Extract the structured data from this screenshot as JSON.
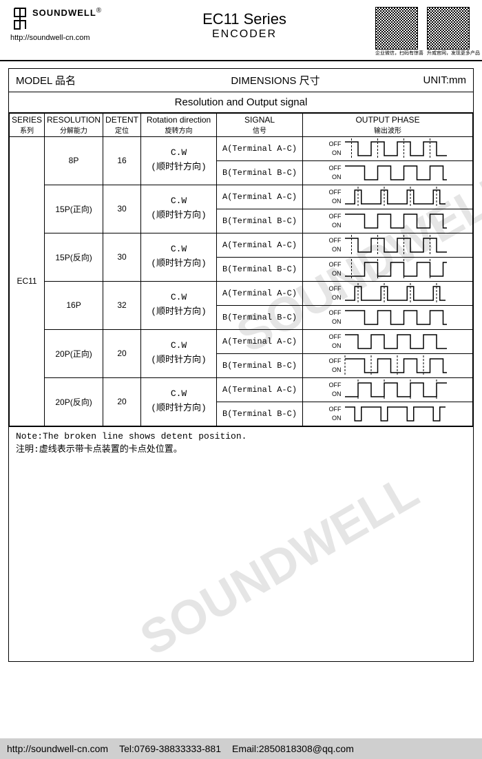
{
  "header": {
    "brand": "SOUNDWELL",
    "reg": "®",
    "url": "http://soundwell-cn.com",
    "series_title": "EC11 Series",
    "subtitle": "ENCODER",
    "qr1_caption": "企业微信，扫码有惊喜",
    "qr2_caption": "升威官网，发现更多产品"
  },
  "banner": {
    "model_label": "MODEL 品名",
    "dimensions_label": "DIMENSIONS 尺寸",
    "unit_label": "UNIT:mm"
  },
  "section_title": "Resolution and Output signal",
  "columns": {
    "series": "SERIES",
    "series_sub": "系列",
    "resolution": "RESOLUTION",
    "resolution_sub": "分解能力",
    "detent": "DETENT",
    "detent_sub": "定位",
    "rotation": "Rotation direction",
    "rotation_sub": "旋转方向",
    "signal": "SIGNAL",
    "signal_sub": "信号",
    "phase": "OUTPUT PHASE",
    "phase_sub": "输出波形"
  },
  "series_name": "EC11",
  "rotation_text_line1": "C.W",
  "rotation_text_line2": "(顺时针方向)",
  "signal_a": "A(Terminal A-C)",
  "signal_b": "B(Terminal B-C)",
  "off_label": "OFF",
  "on_label": "ON",
  "rows": [
    {
      "resolution": "8P",
      "detent": "16",
      "waveA": "sq_peak_dash",
      "waveB": "sq_offset"
    },
    {
      "resolution": "15P(正向)",
      "detent": "30",
      "waveA": "pulse_high_dash",
      "waveB": "sq_offset"
    },
    {
      "resolution": "15P(反向)",
      "detent": "30",
      "waveA": "sq_peak_dash",
      "waveB": "sq_on_dash"
    },
    {
      "resolution": "16P",
      "detent": "32",
      "waveA": "pulse_high_dash",
      "waveB": "sq_offset"
    },
    {
      "resolution": "20P(正向)",
      "detent": "20",
      "waveA": "sq_plain",
      "waveB": "sq_offset_dash"
    },
    {
      "resolution": "20P(反向)",
      "detent": "20",
      "waveA": "sq_on_low_dash",
      "waveB": "pulse_on"
    }
  ],
  "waveform_styles": {
    "width": 150,
    "height": 30,
    "y_off": 5,
    "y_on": 25,
    "period": 38,
    "cycles": 4,
    "stroke": "#000000",
    "stroke_width": 1.5,
    "dash_pattern": "3 2"
  },
  "note_en": "Note:The broken line shows detent position.",
  "note_zh": "注明:虚线表示带卡点装置的卡点处位置。",
  "watermark": "SOUNDWELL",
  "footer": {
    "url": "http://soundwell-cn.com",
    "tel": "Tel:0769-38833333-881",
    "email": "Email:2850818308@qq.com"
  }
}
